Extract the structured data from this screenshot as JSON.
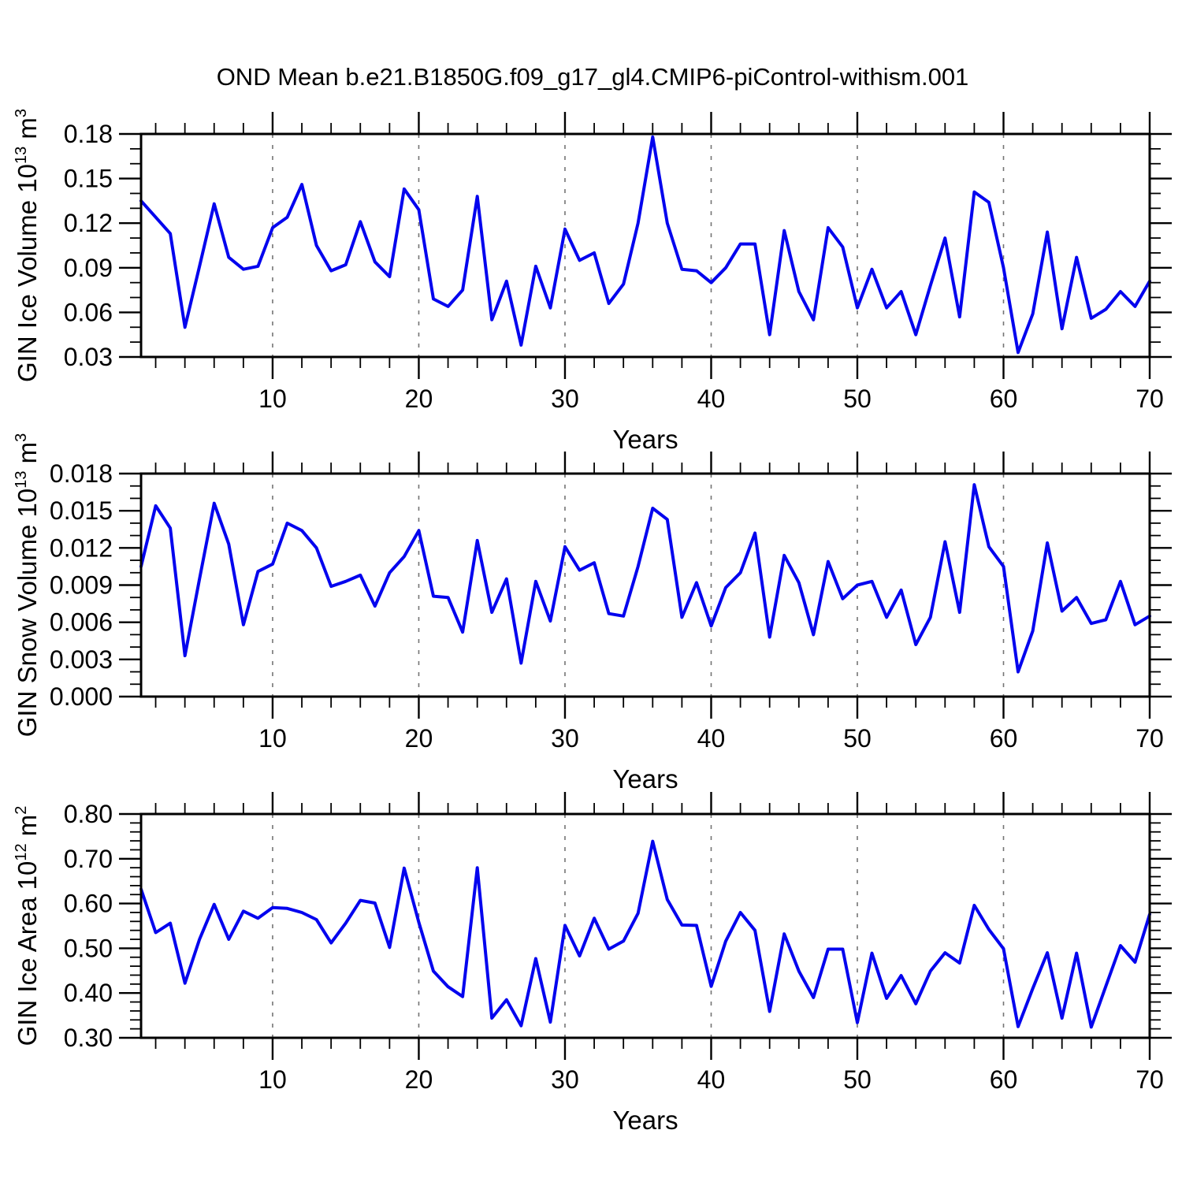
{
  "title": "OND Mean b.e21.B1850G.f09_g17_gl4.CMIP6-piControl-withism.001",
  "colors": {
    "line": "#0404ee",
    "frame": "#000000",
    "grid": "#747474",
    "background": "#ffffff",
    "text": "#000000"
  },
  "x_axis": {
    "label": "Years",
    "min": 1,
    "max": 70,
    "major_ticks": [
      10,
      20,
      30,
      40,
      50,
      60,
      70
    ],
    "tick_labels": [
      "10",
      "20",
      "30",
      "40",
      "50",
      "60",
      "70"
    ],
    "minor_step": 2,
    "grid_years": [
      10,
      20,
      30,
      40,
      50,
      60
    ]
  },
  "chart_data": [
    {
      "type": "line",
      "name": "gin-ice-volume",
      "ylabel": "GIN Ice Volume 10^13 m^3",
      "ylabel_rich": [
        {
          "t": "GIN Ice Volume 10"
        },
        {
          "t": "13",
          "sup": true
        },
        {
          "t": " m"
        },
        {
          "t": "3",
          "sup": true
        }
      ],
      "xlabel": "Years",
      "ylim": [
        0.03,
        0.18
      ],
      "ytick_values": [
        0.03,
        0.06,
        0.09,
        0.12,
        0.15,
        0.18
      ],
      "ytick_labels": [
        "0.03",
        "0.06",
        "0.09",
        "0.12",
        "0.15",
        "0.18"
      ],
      "y_minor_step": 0.01,
      "x_start": 1,
      "legend": "none",
      "grid": "dashed-vertical",
      "values": [
        0.135,
        0.124,
        0.113,
        0.05,
        0.091,
        0.133,
        0.097,
        0.089,
        0.091,
        0.117,
        0.124,
        0.146,
        0.105,
        0.088,
        0.092,
        0.121,
        0.094,
        0.084,
        0.143,
        0.129,
        0.069,
        0.064,
        0.075,
        0.138,
        0.055,
        0.081,
        0.038,
        0.091,
        0.063,
        0.116,
        0.095,
        0.1,
        0.066,
        0.079,
        0.12,
        0.178,
        0.12,
        0.089,
        0.088,
        0.08,
        0.09,
        0.106,
        0.106,
        0.045,
        0.115,
        0.074,
        0.055,
        0.117,
        0.104,
        0.063,
        0.089,
        0.063,
        0.074,
        0.045,
        0.078,
        0.11,
        0.057,
        0.141,
        0.134,
        0.09,
        0.033,
        0.059,
        0.114,
        0.049,
        0.097,
        0.056,
        0.062,
        0.074,
        0.064,
        0.081
      ]
    },
    {
      "type": "line",
      "name": "gin-snow-volume",
      "ylabel": "GIN Snow Volume 10^13 m^3",
      "ylabel_rich": [
        {
          "t": "GIN Snow Volume 10"
        },
        {
          "t": "13",
          "sup": true
        },
        {
          "t": " m"
        },
        {
          "t": "3",
          "sup": true
        }
      ],
      "xlabel": "Years",
      "ylim": [
        0.0,
        0.018
      ],
      "ytick_values": [
        0.0,
        0.003,
        0.006,
        0.009,
        0.012,
        0.015,
        0.018
      ],
      "ytick_labels": [
        "0.000",
        "0.003",
        "0.006",
        "0.009",
        "0.012",
        "0.015",
        "0.018"
      ],
      "y_minor_step": 0.001,
      "x_start": 1,
      "legend": "none",
      "grid": "dashed-vertical",
      "values": [
        0.0105,
        0.0154,
        0.0136,
        0.0033,
        0.0095,
        0.0156,
        0.0123,
        0.0058,
        0.0101,
        0.0107,
        0.014,
        0.0134,
        0.012,
        0.0089,
        0.0093,
        0.0098,
        0.0073,
        0.01,
        0.0113,
        0.0134,
        0.0081,
        0.008,
        0.0052,
        0.0126,
        0.0068,
        0.0095,
        0.0027,
        0.0093,
        0.0061,
        0.0121,
        0.0102,
        0.0108,
        0.0067,
        0.0065,
        0.0105,
        0.0152,
        0.0143,
        0.0064,
        0.0092,
        0.0057,
        0.0088,
        0.01,
        0.0132,
        0.0048,
        0.0114,
        0.0092,
        0.005,
        0.0109,
        0.0079,
        0.009,
        0.0093,
        0.0064,
        0.0086,
        0.0042,
        0.0064,
        0.0125,
        0.0068,
        0.0171,
        0.0121,
        0.0105,
        0.002,
        0.0053,
        0.0124,
        0.0069,
        0.008,
        0.0059,
        0.0062,
        0.0093,
        0.0058,
        0.0065
      ]
    },
    {
      "type": "line",
      "name": "gin-ice-area",
      "ylabel": "GIN Ice Area 10^12 m^2",
      "ylabel_rich": [
        {
          "t": "GIN Ice Area 10"
        },
        {
          "t": "12",
          "sup": true
        },
        {
          "t": " m"
        },
        {
          "t": "2",
          "sup": true
        }
      ],
      "xlabel": "Years",
      "ylim": [
        0.3,
        0.8
      ],
      "ytick_values": [
        0.3,
        0.4,
        0.5,
        0.6,
        0.7,
        0.8
      ],
      "ytick_labels": [
        "0.30",
        "0.40",
        "0.50",
        "0.60",
        "0.70",
        "0.80"
      ],
      "y_minor_step": 0.02,
      "x_start": 1,
      "legend": "none",
      "grid": "dashed-vertical",
      "values": [
        0.632,
        0.535,
        0.556,
        0.422,
        0.52,
        0.598,
        0.52,
        0.583,
        0.567,
        0.591,
        0.589,
        0.58,
        0.564,
        0.512,
        0.556,
        0.607,
        0.601,
        0.502,
        0.679,
        0.558,
        0.449,
        0.414,
        0.392,
        0.68,
        0.344,
        0.385,
        0.327,
        0.477,
        0.335,
        0.551,
        0.483,
        0.567,
        0.498,
        0.516,
        0.578,
        0.739,
        0.609,
        0.552,
        0.551,
        0.415,
        0.516,
        0.58,
        0.54,
        0.359,
        0.532,
        0.449,
        0.39,
        0.498,
        0.498,
        0.334,
        0.489,
        0.388,
        0.439,
        0.376,
        0.449,
        0.49,
        0.467,
        0.596,
        0.542,
        0.499,
        0.325,
        0.41,
        0.49,
        0.344,
        0.489,
        0.324,
        0.415,
        0.506,
        0.469,
        0.576
      ]
    }
  ]
}
